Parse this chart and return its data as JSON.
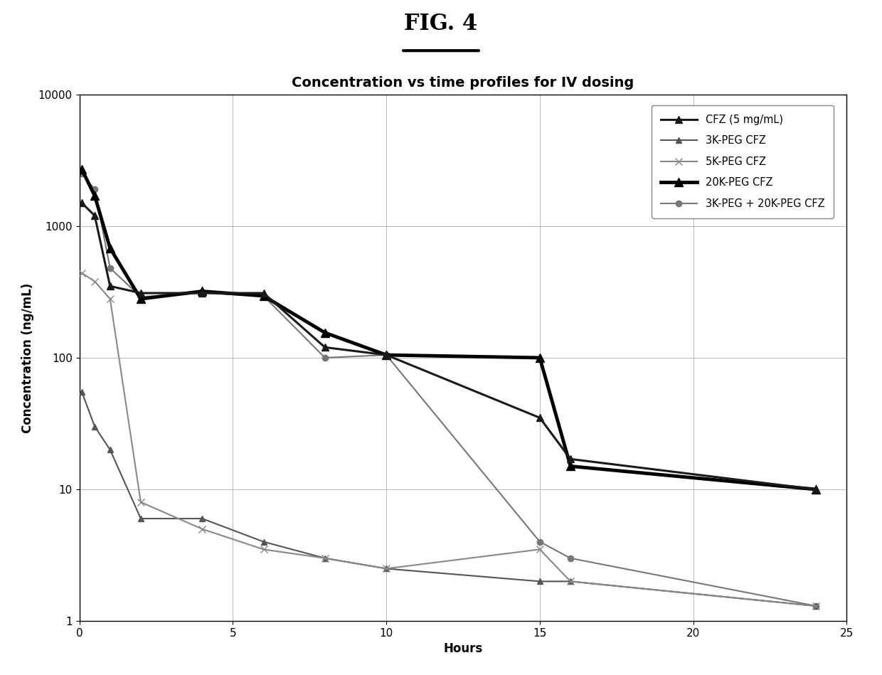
{
  "fig_title": "FIG. 4",
  "title": "Concentration vs time profiles for IV dosing",
  "xlabel": "Hours",
  "ylabel": "Concentration (ng/mL)",
  "series": [
    {
      "label": "CFZ (5 mg/mL)",
      "x": [
        0.08,
        0.5,
        1,
        2,
        4,
        6,
        8,
        10,
        15,
        16,
        24
      ],
      "y": [
        1500,
        1200,
        350,
        310,
        310,
        310,
        120,
        105,
        35,
        17,
        10
      ],
      "color": "#1a1a1a",
      "linewidth": 2.2,
      "marker": "^",
      "markersize": 7,
      "zorder": 5,
      "linestyle": "-"
    },
    {
      "label": "3K-PEG CFZ",
      "x": [
        0.08,
        0.5,
        1,
        2,
        4,
        6,
        8,
        10,
        15,
        16,
        24
      ],
      "y": [
        55,
        30,
        20,
        6,
        6,
        4,
        3,
        2.5,
        2,
        2,
        1.3
      ],
      "color": "#555555",
      "linewidth": 1.5,
      "marker": "^",
      "markersize": 6,
      "zorder": 3,
      "linestyle": "-"
    },
    {
      "label": "5K-PEG CFZ",
      "x": [
        0.08,
        0.5,
        1,
        2,
        4,
        6,
        8,
        10,
        15,
        16,
        24
      ],
      "y": [
        440,
        380,
        280,
        8,
        5,
        3.5,
        3,
        2.5,
        3.5,
        2,
        1.3
      ],
      "color": "#888888",
      "linewidth": 1.5,
      "marker": "x",
      "markersize": 7,
      "zorder": 3,
      "linestyle": "-"
    },
    {
      "label": "20K-PEG CFZ",
      "x": [
        0.08,
        0.5,
        1,
        2,
        4,
        6,
        8,
        10,
        15,
        16,
        24
      ],
      "y": [
        2700,
        1700,
        680,
        280,
        320,
        295,
        155,
        105,
        100,
        15,
        10
      ],
      "color": "#000000",
      "linewidth": 3.5,
      "marker": "^",
      "markersize": 8,
      "zorder": 4,
      "linestyle": "-"
    },
    {
      "label": "3K-PEG + 20K-PEG CFZ",
      "x": [
        0.08,
        0.5,
        1,
        2,
        4,
        6,
        8,
        10,
        15,
        16,
        24
      ],
      "y": [
        2500,
        1900,
        480,
        290,
        310,
        295,
        100,
        105,
        4,
        3,
        1.3
      ],
      "color": "#777777",
      "linewidth": 1.5,
      "marker": "o",
      "markersize": 6,
      "zorder": 2,
      "linestyle": "-"
    }
  ],
  "xlim": [
    0,
    25
  ],
  "ylim": [
    1,
    10000
  ],
  "yticks": [
    1,
    10,
    100,
    1000,
    10000
  ],
  "xticks": [
    0,
    5,
    10,
    15,
    20,
    25
  ],
  "background_color": "#ffffff",
  "grid_color": "#999999",
  "title_fontsize": 14,
  "axis_label_fontsize": 12,
  "tick_fontsize": 11
}
